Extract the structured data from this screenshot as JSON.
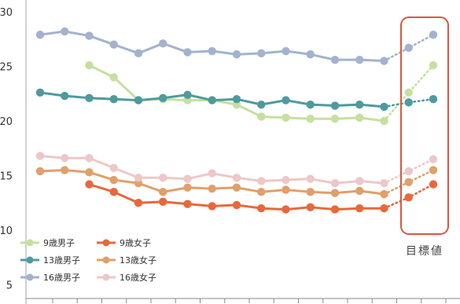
{
  "chart_data": {
    "type": "line",
    "ylim": [
      3,
      30
    ],
    "yticks": [
      5,
      10,
      15,
      20,
      25,
      30
    ],
    "x_points": 17,
    "target_label": "目標値",
    "legend_placement": "bottom-left",
    "series": [
      {
        "name": "9歳男子",
        "color": "#c5e0a0",
        "start": 2,
        "solid_end": 14,
        "values": [
          null,
          null,
          25.1,
          24.0,
          21.9,
          22.0,
          21.9,
          21.9,
          21.5,
          20.4,
          20.3,
          20.2,
          20.2,
          20.3,
          20.0,
          22.6,
          25.1
        ]
      },
      {
        "name": "9歳女子",
        "color": "#e8683a",
        "start": 2,
        "solid_end": 14,
        "values": [
          null,
          null,
          14.2,
          13.5,
          12.5,
          12.6,
          12.4,
          12.2,
          12.3,
          12.0,
          11.9,
          12.1,
          11.9,
          12.0,
          12.0,
          13.0,
          14.2
        ]
      },
      {
        "name": "13歳男子",
        "color": "#4f9a9e",
        "start": 0,
        "solid_end": 14,
        "values": [
          22.6,
          22.3,
          22.1,
          22.0,
          21.9,
          22.1,
          22.4,
          21.9,
          22.0,
          21.5,
          21.9,
          21.5,
          21.4,
          21.5,
          21.3,
          21.7,
          22.0
        ]
      },
      {
        "name": "13歳女子",
        "color": "#e0a06a",
        "start": 0,
        "solid_end": 14,
        "values": [
          15.4,
          15.5,
          15.3,
          14.6,
          14.3,
          13.5,
          13.9,
          13.8,
          13.9,
          13.5,
          13.7,
          13.5,
          13.4,
          13.6,
          13.3,
          14.4,
          15.5
        ]
      },
      {
        "name": "16歳男子",
        "color": "#a3b2ce",
        "start": 0,
        "solid_end": 14,
        "values": [
          27.9,
          28.2,
          27.8,
          27.0,
          26.2,
          27.1,
          26.3,
          26.4,
          26.1,
          26.2,
          26.4,
          26.1,
          25.6,
          25.6,
          25.5,
          26.7,
          27.9
        ]
      },
      {
        "name": "16歳女子",
        "color": "#ecc8c8",
        "start": 0,
        "solid_end": 14,
        "values": [
          16.8,
          16.6,
          16.6,
          15.7,
          14.8,
          14.8,
          14.7,
          15.2,
          14.8,
          14.5,
          14.6,
          14.7,
          14.3,
          14.5,
          14.3,
          15.4,
          16.5
        ]
      }
    ],
    "legend": [
      {
        "label": "9歳男子",
        "series": 0
      },
      {
        "label": "9歳女子",
        "series": 1
      },
      {
        "label": "13歳男子",
        "series": 2
      },
      {
        "label": "13歳女子",
        "series": 3
      },
      {
        "label": "16歳男子",
        "series": 4
      },
      {
        "label": "16歳女子",
        "series": 5
      }
    ]
  }
}
